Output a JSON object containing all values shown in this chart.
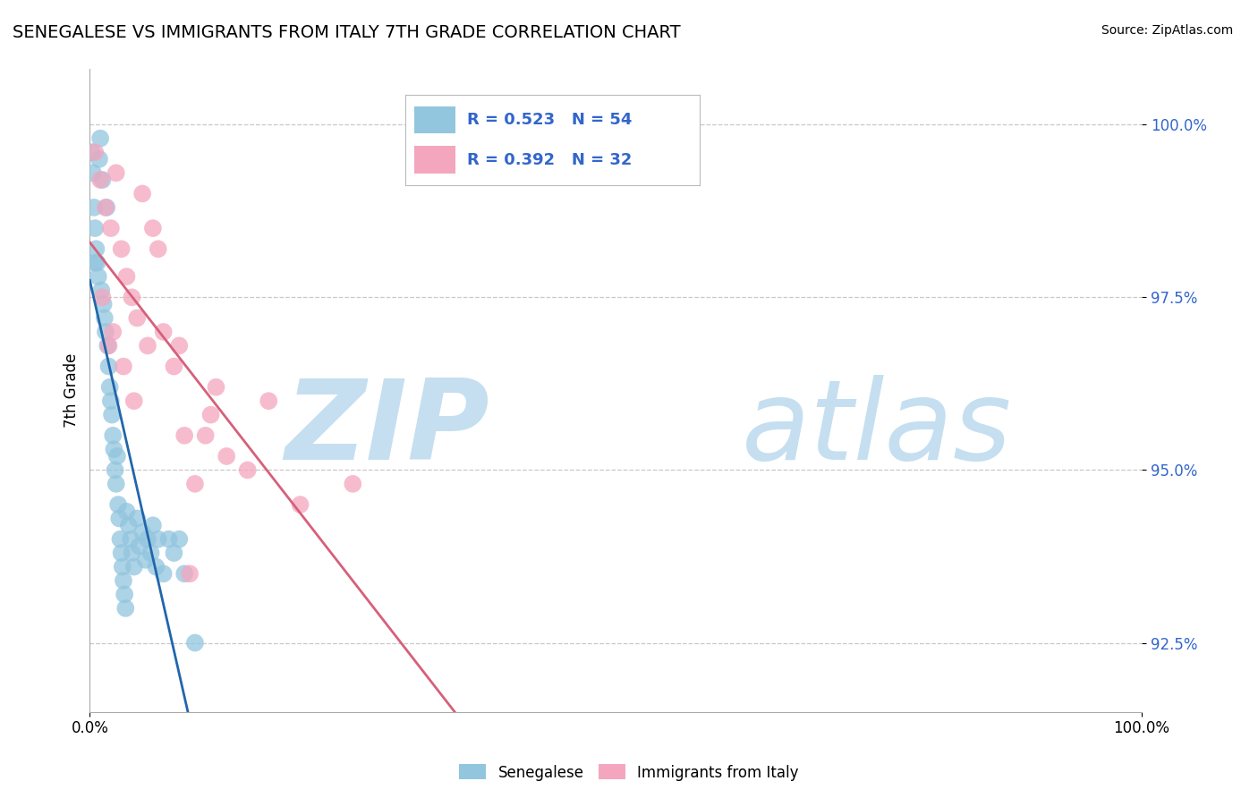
{
  "title": "SENEGALESE VS IMMIGRANTS FROM ITALY 7TH GRADE CORRELATION CHART",
  "source": "Source: ZipAtlas.com",
  "ylabel": "7th Grade",
  "blue_label": "Senegalese",
  "pink_label": "Immigrants from Italy",
  "blue_R": 0.523,
  "blue_N": 54,
  "pink_R": 0.392,
  "pink_N": 32,
  "blue_color": "#92c5de",
  "pink_color": "#f4a6be",
  "blue_line_color": "#2166ac",
  "pink_line_color": "#d6607a",
  "legend_text_color": "#3366cc",
  "xlim": [
    0.0,
    100.0
  ],
  "ylim": [
    91.5,
    100.8
  ],
  "yticks": [
    92.5,
    95.0,
    97.5,
    100.0
  ],
  "background_color": "#ffffff",
  "grid_color": "#c8c8c8",
  "watermark_zip": "ZIP",
  "watermark_atlas": "atlas",
  "watermark_color": "#c5dff0",
  "blue_scatter_x": [
    0.2,
    0.3,
    0.4,
    0.5,
    0.6,
    0.7,
    0.8,
    0.9,
    1.0,
    1.1,
    1.2,
    1.3,
    1.4,
    1.5,
    1.6,
    1.7,
    1.8,
    1.9,
    2.0,
    2.1,
    2.2,
    2.3,
    2.4,
    2.5,
    2.6,
    2.7,
    2.8,
    2.9,
    3.0,
    3.1,
    3.2,
    3.3,
    3.4,
    3.5,
    3.7,
    3.9,
    4.0,
    4.2,
    4.5,
    4.7,
    5.0,
    5.3,
    5.5,
    5.8,
    6.0,
    6.3,
    6.5,
    7.0,
    7.5,
    8.0,
    8.5,
    9.0,
    10.0,
    0.5
  ],
  "blue_scatter_y": [
    99.6,
    99.3,
    98.8,
    98.5,
    98.2,
    98.0,
    97.8,
    99.5,
    99.8,
    97.6,
    99.2,
    97.4,
    97.2,
    97.0,
    98.8,
    96.8,
    96.5,
    96.2,
    96.0,
    95.8,
    95.5,
    95.3,
    95.0,
    94.8,
    95.2,
    94.5,
    94.3,
    94.0,
    93.8,
    93.6,
    93.4,
    93.2,
    93.0,
    94.4,
    94.2,
    94.0,
    93.8,
    93.6,
    94.3,
    93.9,
    94.1,
    93.7,
    94.0,
    93.8,
    94.2,
    93.6,
    94.0,
    93.5,
    94.0,
    93.8,
    94.0,
    93.5,
    92.5,
    98.0
  ],
  "pink_scatter_x": [
    0.5,
    1.0,
    1.5,
    2.0,
    2.5,
    3.0,
    3.5,
    4.0,
    4.5,
    5.0,
    5.5,
    6.0,
    7.0,
    8.0,
    9.0,
    10.0,
    11.0,
    12.0,
    13.0,
    15.0,
    17.0,
    20.0,
    25.0,
    1.2,
    2.2,
    3.2,
    4.2,
    6.5,
    8.5,
    11.5,
    1.8,
    9.5
  ],
  "pink_scatter_y": [
    99.6,
    99.2,
    98.8,
    98.5,
    99.3,
    98.2,
    97.8,
    97.5,
    97.2,
    99.0,
    96.8,
    98.5,
    97.0,
    96.5,
    95.5,
    94.8,
    95.5,
    96.2,
    95.2,
    95.0,
    96.0,
    94.5,
    94.8,
    97.5,
    97.0,
    96.5,
    96.0,
    98.2,
    96.8,
    95.8,
    96.8,
    93.5
  ]
}
